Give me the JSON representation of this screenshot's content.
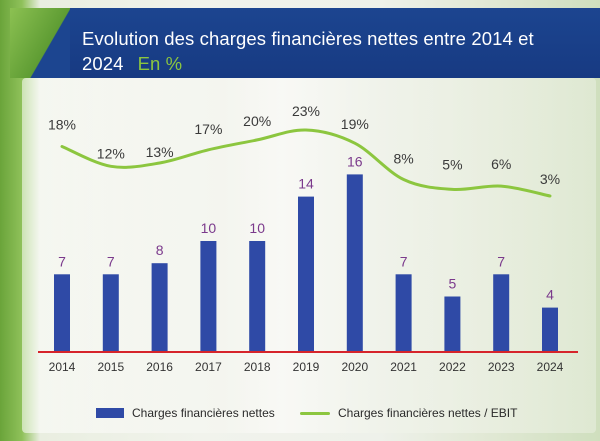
{
  "header": {
    "title": "Evolution des charges financières nettes entre 2014 et 2024",
    "unit": "En %"
  },
  "colors": {
    "bars": "#2f4aa6",
    "bar_labels": "#7b3a8c",
    "line": "#8cc63f",
    "baseline": "#d6242b",
    "header_bg": "#1c4590"
  },
  "chart_data": {
    "type": "bar",
    "categories": [
      "2014",
      "2015",
      "2016",
      "2017",
      "2018",
      "2019",
      "2020",
      "2021",
      "2022",
      "2023",
      "2024"
    ],
    "series": [
      {
        "name": "Charges financières nettes",
        "type": "bar",
        "values": [
          7,
          7,
          8,
          10,
          10,
          14,
          16,
          7,
          5,
          7,
          4
        ]
      },
      {
        "name": "Charges financières nettes / EBIT",
        "type": "line",
        "values": [
          18,
          12,
          13,
          17,
          20,
          23,
          19,
          8,
          5,
          6,
          3
        ],
        "labels": [
          "18%",
          "12%",
          "13%",
          "17%",
          "20%",
          "23%",
          "19%",
          "8%",
          "5%",
          "6%",
          "3%"
        ]
      }
    ],
    "legend": [
      "Charges financières nettes",
      "Charges financières nettes / EBIT"
    ],
    "legend_position": "bottom",
    "grid": false
  }
}
